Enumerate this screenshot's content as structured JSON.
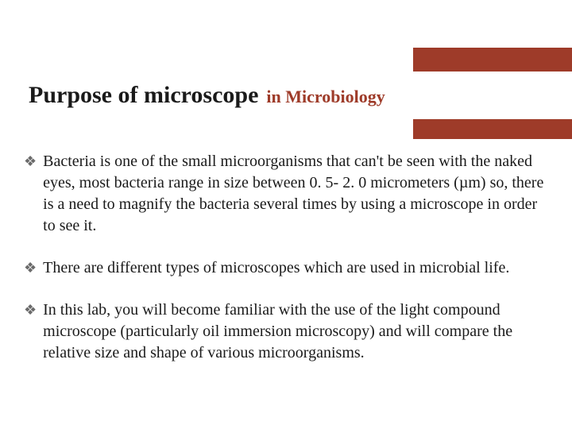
{
  "slide": {
    "title_main": "Purpose of microscope",
    "title_sub": "in Microbiology",
    "title_main_fontsize": 30,
    "title_sub_fontsize": 22,
    "title_main_color": "#1a1a1a",
    "title_sub_color": "#9e3b29",
    "accent_block_color": "#9e3b29",
    "background_color": "#ffffff",
    "body_fontsize": 20,
    "body_lineheight": 27,
    "body_color": "#1a1a1a",
    "bullet_glyph": "❖",
    "bullet_color": "#6a6a6a",
    "bullets": [
      "Bacteria is one of the small microorganisms that can't be seen with the naked eyes, most bacteria range in size between 0. 5- 2. 0 micrometers (µm) so, there is a need to magnify the bacteria several times by using a microscope in order to see it.",
      "There are different types of microscopes which are used in microbial life.",
      "In this lab, you will become familiar with the use of the light compound microscope (particularly oil immersion microscopy) and will compare the relative size and shape of various microorganisms."
    ]
  }
}
